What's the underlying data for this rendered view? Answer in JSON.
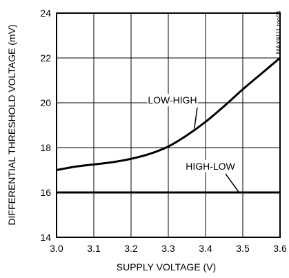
{
  "chart_data": {
    "type": "line",
    "title": "",
    "xlabel": "SUPPLY VOLTAGE (V)",
    "ylabel": "DIFFERENTIAL THRESHOLD VOLTAGE (mV)",
    "xlim": [
      3.0,
      3.6
    ],
    "ylim": [
      14,
      24
    ],
    "xticks": [
      3.0,
      3.1,
      3.2,
      3.3,
      3.4,
      3.5,
      3.6
    ],
    "xtick_labels": [
      "3.0",
      "3.1",
      "3.2",
      "3.3",
      "3.4",
      "3.5",
      "3.6"
    ],
    "yticks": [
      14,
      16,
      18,
      20,
      22,
      24
    ],
    "ytick_labels": [
      "14",
      "16",
      "18",
      "20",
      "22",
      "24"
    ],
    "grid": true,
    "legend": "none",
    "series": [
      {
        "name": "LOW-HIGH",
        "x": [
          3.0,
          3.05,
          3.1,
          3.15,
          3.2,
          3.25,
          3.3,
          3.35,
          3.4,
          3.45,
          3.5,
          3.55,
          3.6
        ],
        "y": [
          17.0,
          17.15,
          17.25,
          17.35,
          17.5,
          17.72,
          18.05,
          18.55,
          19.15,
          19.85,
          20.6,
          21.3,
          22.0
        ]
      },
      {
        "name": "HIGH-LOW",
        "x": [
          3.0,
          3.1,
          3.2,
          3.3,
          3.4,
          3.5,
          3.6
        ],
        "y": [
          16.0,
          16.0,
          16.0,
          16.0,
          16.0,
          16.0,
          16.0
        ]
      }
    ],
    "annotations": [
      {
        "text": "LOW-HIGH",
        "series": "LOW-HIGH",
        "arrow_to": [
          3.37,
          18.85
        ]
      },
      {
        "text": "HIGH-LOW",
        "series": "HIGH-LOW",
        "arrow_to": [
          3.49,
          16.0
        ]
      }
    ],
    "code_label": "MAX9111 toc04",
    "colors": {
      "line": "#000000",
      "grid": "#000000",
      "background": "#ffffff"
    }
  }
}
